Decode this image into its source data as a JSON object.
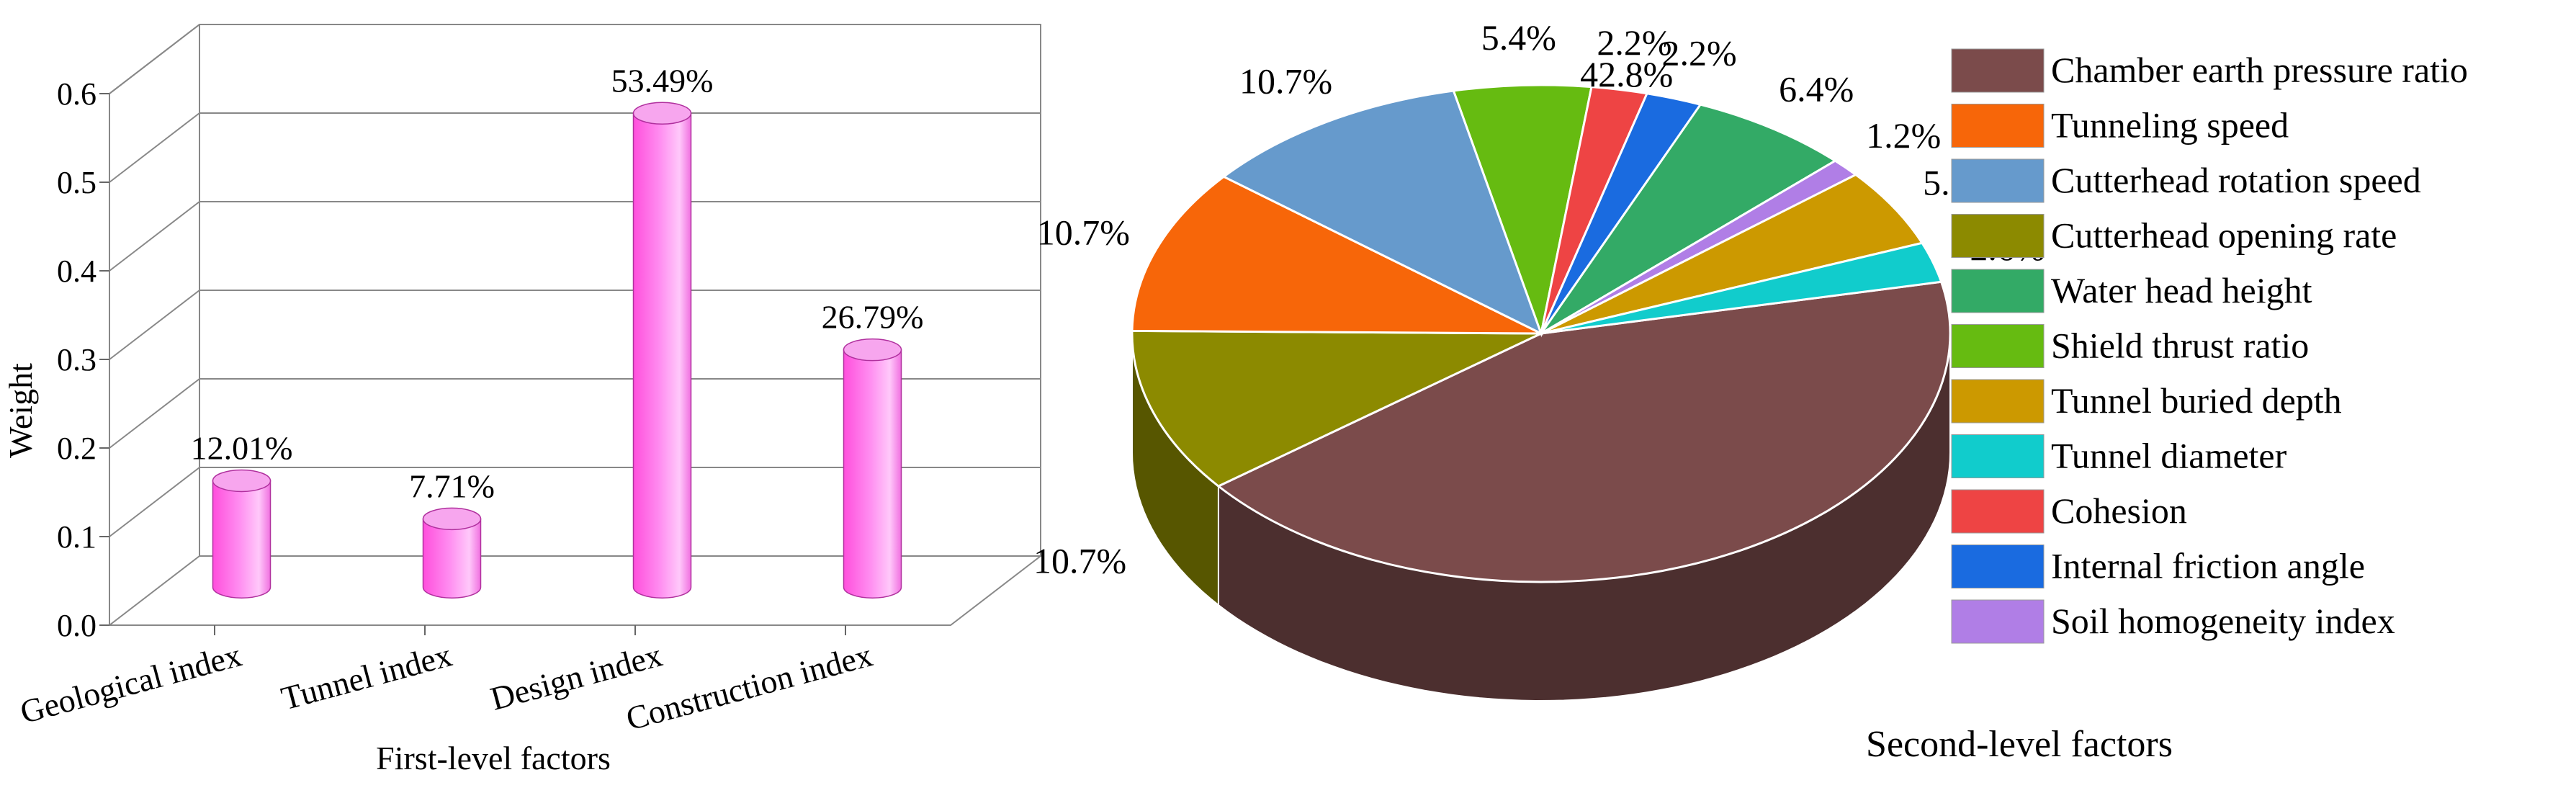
{
  "chart_data": [
    {
      "type": "bar",
      "style": "3d-cylinder",
      "title": "",
      "xlabel": "First-level factors",
      "ylabel": "Weight",
      "ylim": [
        0,
        0.6
      ],
      "yticks": [
        "0.0",
        "0.1",
        "0.2",
        "0.3",
        "0.4",
        "0.5",
        "0.6"
      ],
      "grid": true,
      "categories": [
        "Geological index",
        "Tunnel index",
        "Design index",
        "Construction index"
      ],
      "values": [
        0.1201,
        0.0771,
        0.5349,
        0.2679
      ],
      "data_labels": [
        "12.01%",
        "7.71%",
        "53.49%",
        "26.79%"
      ],
      "bar_color": "#ff66e6"
    },
    {
      "type": "pie",
      "style": "3d",
      "title": "",
      "caption": "Second-level factors",
      "legend_position": "right",
      "slices": [
        {
          "name": "Chamber earth pressure ratio",
          "value": 42.8,
          "label": "42.8%",
          "color": "#7b4b4b"
        },
        {
          "name": "Tunneling speed",
          "value": 10.7,
          "label": "10.7%",
          "color": "#f76609"
        },
        {
          "name": "Cutterhead rotation speed",
          "value": 10.7,
          "label": "10.7%",
          "color": "#669acc"
        },
        {
          "name": "Cutterhead opening rate",
          "value": 10.7,
          "label": "10.7%",
          "color": "#8c8a00"
        },
        {
          "name": "Water head height",
          "value": 6.4,
          "label": "6.4%",
          "color": "#33aa66"
        },
        {
          "name": "Shield thrust ratio",
          "value": 5.4,
          "label": "5.4%",
          "color": "#66bb11"
        },
        {
          "name": "Tunnel buried depth",
          "value": 5.1,
          "label": "5.1%",
          "color": "#cc9900"
        },
        {
          "name": "Tunnel diameter",
          "value": 2.6,
          "label": "2.6%",
          "color": "#11cccc"
        },
        {
          "name": "Cohesion",
          "value": 2.2,
          "label": "2.2%",
          "color": "#ee4444"
        },
        {
          "name": "Internal friction angle",
          "value": 2.2,
          "label": "2.2%",
          "color": "#1a6be0"
        },
        {
          "name": "Soil homogeneity index",
          "value": 1.2,
          "label": "1.2%",
          "color": "#b07ee6"
        }
      ],
      "pie_order": [
        "Chamber earth pressure ratio",
        "Cutterhead opening rate",
        "Tunneling speed",
        "Cutterhead rotation speed",
        "Shield thrust ratio",
        "Cohesion",
        "Internal friction angle",
        "Water head height",
        "Soil homogeneity index",
        "Tunnel buried depth",
        "Tunnel diameter"
      ]
    }
  ]
}
